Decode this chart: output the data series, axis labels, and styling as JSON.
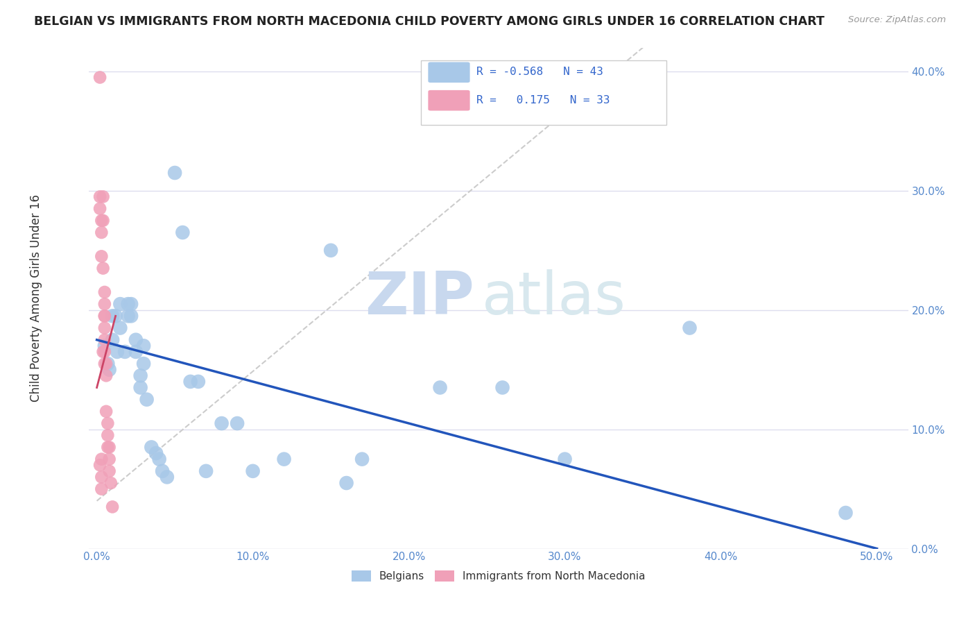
{
  "title": "BELGIAN VS IMMIGRANTS FROM NORTH MACEDONIA CHILD POVERTY AMONG GIRLS UNDER 16 CORRELATION CHART",
  "source": "Source: ZipAtlas.com",
  "ylabel": "Child Poverty Among Girls Under 16",
  "ylim": [
    0.0,
    0.42
  ],
  "xlim": [
    -0.005,
    0.52
  ],
  "legend_labels": [
    "Belgians",
    "Immigrants from North Macedonia"
  ],
  "r_belgian": -0.568,
  "n_belgian": 43,
  "r_macedonia": 0.175,
  "n_macedonia": 33,
  "blue_color": "#a8c8e8",
  "pink_color": "#f0a0b8",
  "blue_line_color": "#2255bb",
  "pink_line_color": "#cc4466",
  "belgians_x": [
    0.005,
    0.007,
    0.008,
    0.01,
    0.01,
    0.012,
    0.013,
    0.015,
    0.015,
    0.018,
    0.02,
    0.02,
    0.022,
    0.022,
    0.025,
    0.025,
    0.028,
    0.028,
    0.03,
    0.03,
    0.032,
    0.035,
    0.038,
    0.04,
    0.042,
    0.045,
    0.05,
    0.055,
    0.06,
    0.065,
    0.07,
    0.08,
    0.09,
    0.1,
    0.12,
    0.15,
    0.16,
    0.17,
    0.22,
    0.26,
    0.3,
    0.38,
    0.48
  ],
  "belgians_y": [
    0.17,
    0.155,
    0.15,
    0.195,
    0.175,
    0.195,
    0.165,
    0.205,
    0.185,
    0.165,
    0.205,
    0.195,
    0.205,
    0.195,
    0.175,
    0.165,
    0.145,
    0.135,
    0.17,
    0.155,
    0.125,
    0.085,
    0.08,
    0.075,
    0.065,
    0.06,
    0.315,
    0.265,
    0.14,
    0.14,
    0.065,
    0.105,
    0.105,
    0.065,
    0.075,
    0.25,
    0.055,
    0.075,
    0.135,
    0.135,
    0.075,
    0.185,
    0.03
  ],
  "macedonia_x": [
    0.002,
    0.002,
    0.002,
    0.002,
    0.003,
    0.003,
    0.003,
    0.003,
    0.003,
    0.003,
    0.004,
    0.004,
    0.004,
    0.004,
    0.005,
    0.005,
    0.005,
    0.005,
    0.005,
    0.005,
    0.005,
    0.005,
    0.006,
    0.006,
    0.006,
    0.007,
    0.007,
    0.007,
    0.008,
    0.008,
    0.008,
    0.009,
    0.01
  ],
  "macedonia_y": [
    0.395,
    0.295,
    0.285,
    0.07,
    0.275,
    0.265,
    0.245,
    0.075,
    0.06,
    0.05,
    0.295,
    0.275,
    0.235,
    0.165,
    0.215,
    0.205,
    0.195,
    0.195,
    0.185,
    0.175,
    0.165,
    0.155,
    0.155,
    0.145,
    0.115,
    0.105,
    0.095,
    0.085,
    0.085,
    0.075,
    0.065,
    0.055,
    0.035
  ],
  "ytick_vals": [
    0.0,
    0.1,
    0.2,
    0.3,
    0.4
  ],
  "ytick_labels": [
    "0.0%",
    "10.0%",
    "20.0%",
    "30.0%",
    "40.0%"
  ],
  "xtick_vals": [
    0.0,
    0.1,
    0.2,
    0.3,
    0.4,
    0.5
  ],
  "xtick_labels": [
    "0.0%",
    "10.0%",
    "20.0%",
    "30.0%",
    "40.0%",
    "50.0%"
  ],
  "tick_color": "#5588cc",
  "grid_color": "#ddddee",
  "watermark_zip_color": "#c8d8ee",
  "watermark_atlas_color": "#d8e8ee"
}
